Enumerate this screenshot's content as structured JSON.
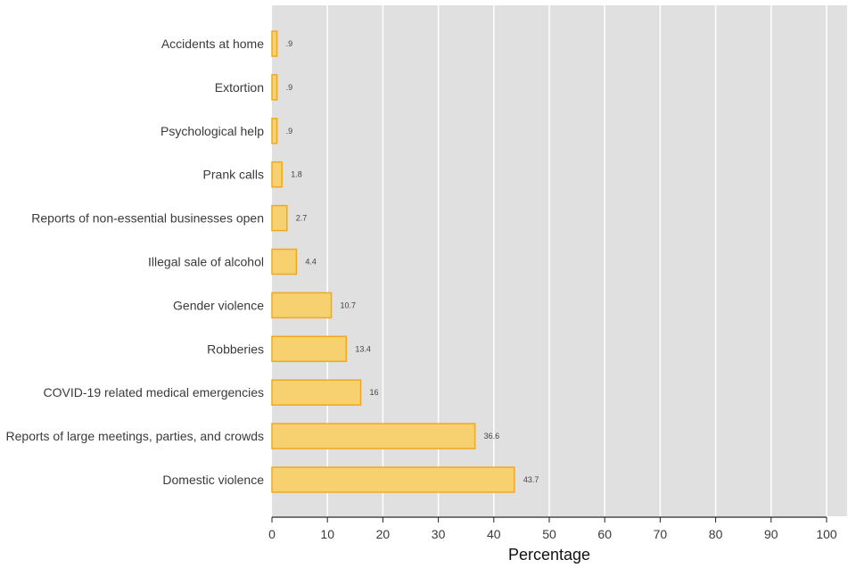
{
  "chart_data": {
    "type": "bar",
    "orientation": "horizontal",
    "categories": [
      "Accidents at home",
      "Extortion",
      "Psychological help",
      "Prank calls",
      "Reports of non-essential businesses open",
      "Illegal sale of alcohol",
      "Gender violence",
      "Robberies",
      "COVID-19 related medical emergencies",
      "Reports of large meetings, parties, and crowds",
      "Domestic violence"
    ],
    "values": [
      0.9,
      0.9,
      0.9,
      1.8,
      2.7,
      4.4,
      10.7,
      13.4,
      16,
      36.6,
      43.7
    ],
    "value_labels": [
      ".9",
      ".9",
      ".9",
      "1.8",
      "2.7",
      "4.4",
      "10.7",
      "13.4",
      "16",
      "36.6",
      "43.7"
    ],
    "title": "",
    "xlabel": "Percentage",
    "ylabel": "",
    "xlim": [
      0,
      100
    ],
    "xticks": [
      "0",
      "10",
      "20",
      "30",
      "40",
      "50",
      "60",
      "70",
      "80",
      "90",
      "100"
    ],
    "grid": true,
    "colors": {
      "bar_fill": "#f7d070",
      "bar_stroke": "#f0a820",
      "plot_background": "#e0e0e0",
      "grid": "#ffffff",
      "axis": "#222222"
    }
  }
}
